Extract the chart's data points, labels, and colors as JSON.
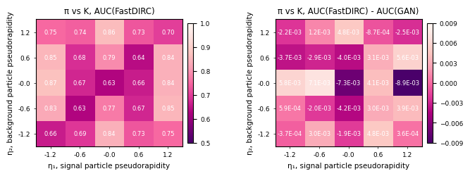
{
  "title1": "π vs K, AUC(FastDIRC)",
  "title2": "π vs K, AUC(FastDIRC) - AUC(GAN)",
  "xlabel": "η₁, signal particle pseudorapidity",
  "ylabel": "η₂, background particle pseudorapidity",
  "tick_labels_x": [
    "-1.2",
    "-0.6",
    "-0.0",
    "0.6",
    "1.2"
  ],
  "tick_labels_y": [
    "1.2",
    "0.6",
    "-0.0",
    "-0.6",
    "-1.2"
  ],
  "data1": [
    [
      0.75,
      0.74,
      0.86,
      0.73,
      0.7
    ],
    [
      0.85,
      0.68,
      0.79,
      0.64,
      0.84
    ],
    [
      0.87,
      0.67,
      0.63,
      0.66,
      0.84
    ],
    [
      0.83,
      0.63,
      0.77,
      0.67,
      0.85
    ],
    [
      0.66,
      0.69,
      0.84,
      0.73,
      0.75
    ]
  ],
  "data2": [
    [
      -0.0022,
      0.0012,
      0.0048,
      -0.00087,
      -0.0025
    ],
    [
      -0.0037,
      -0.0029,
      -0.004,
      0.0031,
      0.0056
    ],
    [
      0.0058,
      0.0071,
      -0.0073,
      0.0041,
      -0.0089
    ],
    [
      0.00059,
      -0.002,
      -0.0042,
      0.003,
      0.0039
    ],
    [
      -0.00037,
      0.003,
      -0.0019,
      0.0048,
      0.00036
    ]
  ],
  "vmin1": 0.5,
  "vmax1": 1.0,
  "vmin2": -0.009,
  "vmax2": 0.009,
  "cmap": "RdPu_r",
  "text_color": "white",
  "fontsize_title": 8.5,
  "fontsize_tick": 6.5,
  "fontsize_cell": 6.0,
  "fontsize_label": 7.5,
  "colorbar1_ticks": [
    0.5,
    0.6,
    0.7,
    0.8,
    0.9,
    1.0
  ],
  "colorbar2_ticks": [
    -0.009,
    -0.006,
    -0.003,
    0.0,
    0.003,
    0.006,
    0.009
  ]
}
